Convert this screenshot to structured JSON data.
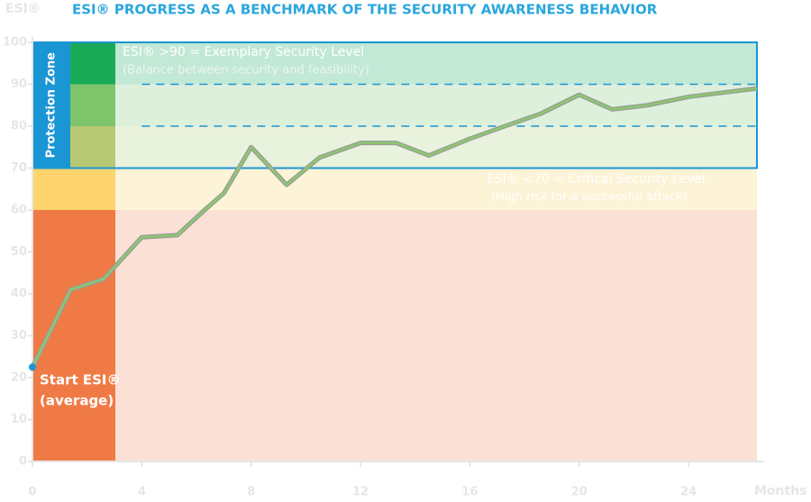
{
  "chart_data": {
    "type": "line",
    "title": "ESI® PROGRESS AS A BENCHMARK OF THE SECURITY AWARENESS BEHAVIOR",
    "y_label": "ESI®",
    "x_label": "Months",
    "x": [
      0,
      1.4,
      2.6,
      4,
      5.3,
      6.3,
      7,
      8,
      9.3,
      10.5,
      12,
      13.3,
      14.5,
      16,
      17.5,
      18.6,
      20,
      21.2,
      22.5,
      24,
      26.5
    ],
    "series": [
      {
        "name": "ESI",
        "color": "#8cc86e",
        "values": [
          22.5,
          41,
          43.5,
          53.5,
          54,
          60,
          64,
          75,
          66,
          72.5,
          76,
          76,
          73,
          77,
          80.5,
          83,
          87.5,
          84,
          85,
          87,
          89
        ]
      }
    ],
    "xlim": [
      0,
      26.5
    ],
    "ylim": [
      0,
      100
    ],
    "xticks": [
      0,
      4,
      8,
      12,
      16,
      20,
      24
    ],
    "yticks": [
      0,
      10,
      20,
      30,
      40,
      50,
      60,
      70,
      80,
      90,
      100
    ],
    "zones": [
      {
        "from": 0,
        "to": 60,
        "color": "#fbe0d6",
        "key_color": "#f07a45"
      },
      {
        "from": 60,
        "to": 70,
        "color": "#fdf3d6",
        "key_color": "#fdd46e"
      },
      {
        "from": 70,
        "to": 80,
        "color": "#e9f2dc",
        "key_color": "#b9c874"
      },
      {
        "from": 80,
        "to": 90,
        "color": "#ddf0dc",
        "key_color": "#7ec46b"
      },
      {
        "from": 90,
        "to": 100,
        "color": "#c2e8d6",
        "key_color": "#1aaa57"
      }
    ],
    "dashed_levels": [
      80,
      90
    ],
    "annotations": {
      "protection_zone": "Protection Zone",
      "exemplary": "ESI® >90 = Exemplary Security Level",
      "exemplary_note": "(Balance between security and feasibility)",
      "critical": "ESI® <70 = Critical Security Level",
      "critical_note": "(High risk for a successful attack)",
      "start_1": "Start ESI®",
      "start_2": "(average)"
    }
  }
}
